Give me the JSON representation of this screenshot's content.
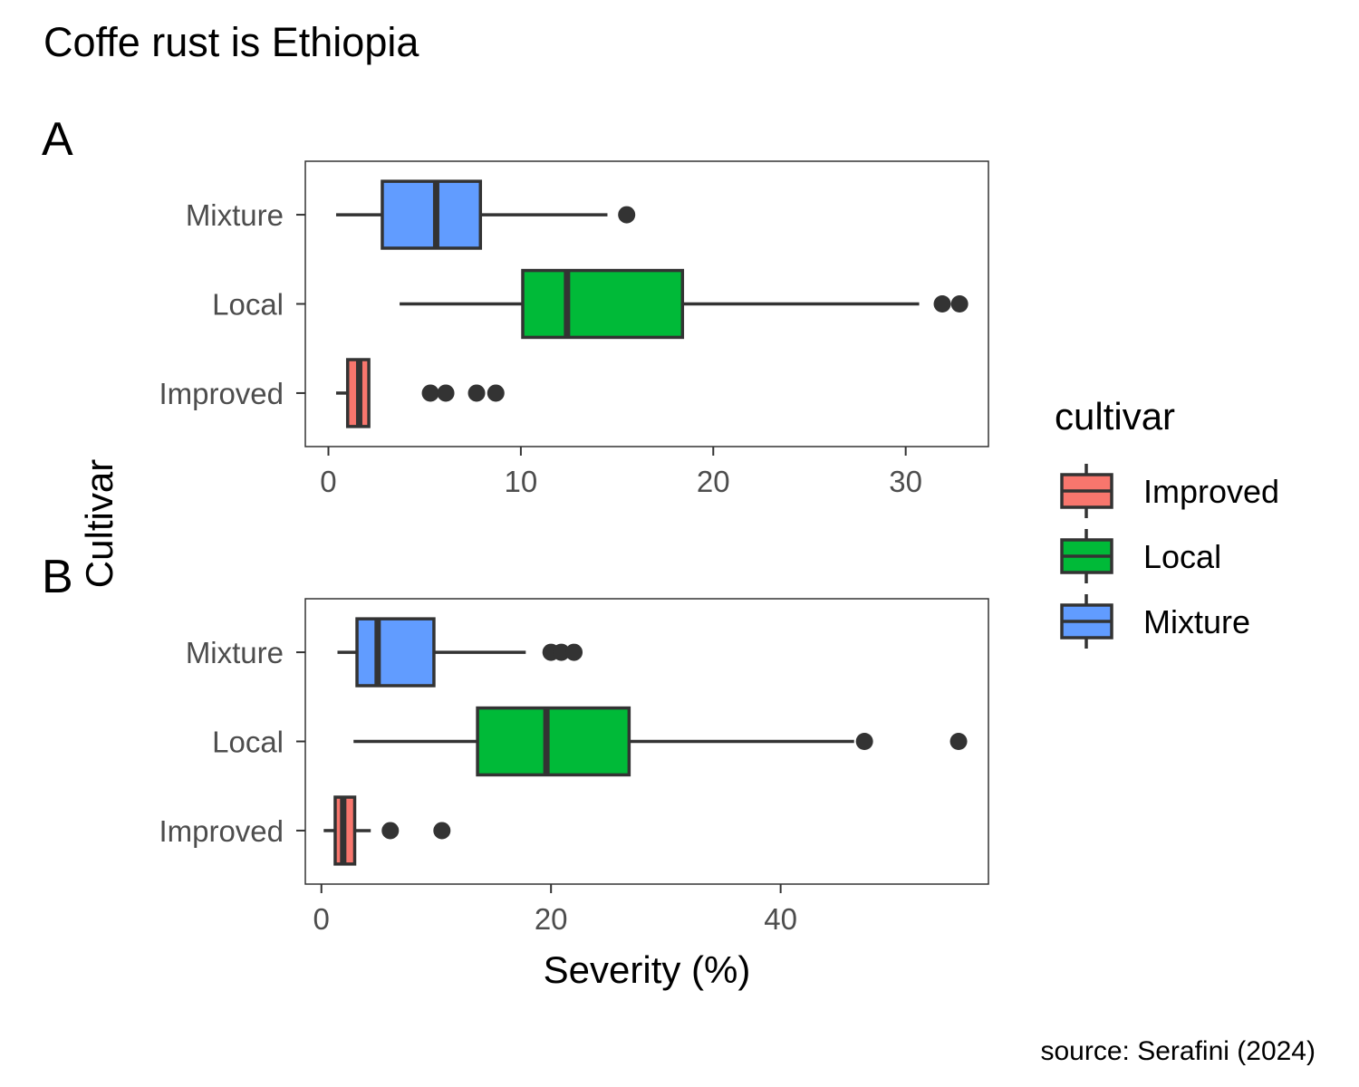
{
  "title": "Coffe rust is Ethiopia",
  "caption": "source: Serafini (2024)",
  "y_axis_title": "Cultivar",
  "x_axis_title": "Severity (%)",
  "legend": {
    "title": "cultivar",
    "items": [
      {
        "label": "Improved",
        "color": "#F8766D"
      },
      {
        "label": "Local",
        "color": "#00BA38"
      },
      {
        "label": "Mixture",
        "color": "#619CFF"
      }
    ]
  },
  "chart_data": [
    {
      "type": "boxplot",
      "panel": "A",
      "orientation": "horizontal",
      "xlim": [
        -1.2,
        34.3
      ],
      "x_ticks": [
        0,
        10,
        20,
        30
      ],
      "x_tick_labels": [
        "0",
        "10",
        "20",
        "30"
      ],
      "categories": [
        "Improved",
        "Local",
        "Mixture"
      ],
      "boxes": [
        {
          "category": "Improved",
          "color": "#F8766D",
          "whisker_low": 0.4,
          "q1": 1.0,
          "median": 1.6,
          "q3": 2.1,
          "whisker_high": 2.1,
          "outliers": [
            5.3,
            6.1,
            7.7,
            8.7
          ]
        },
        {
          "category": "Local",
          "color": "#00BA38",
          "whisker_low": 3.7,
          "q1": 10.1,
          "median": 12.4,
          "q3": 18.4,
          "whisker_high": 30.7,
          "outliers": [
            31.9,
            32.8
          ]
        },
        {
          "category": "Mixture",
          "color": "#619CFF",
          "whisker_low": 0.4,
          "q1": 2.8,
          "median": 5.6,
          "q3": 7.9,
          "whisker_high": 14.5,
          "outliers": [
            15.5
          ]
        }
      ]
    },
    {
      "type": "boxplot",
      "panel": "B",
      "orientation": "horizontal",
      "xlim": [
        -1.4,
        58.1
      ],
      "x_ticks": [
        0,
        20,
        40
      ],
      "x_tick_labels": [
        "0",
        "20",
        "40"
      ],
      "categories": [
        "Improved",
        "Local",
        "Mixture"
      ],
      "boxes": [
        {
          "category": "Improved",
          "color": "#F8766D",
          "whisker_low": 0.2,
          "q1": 1.2,
          "median": 1.9,
          "q3": 2.9,
          "whisker_high": 4.3,
          "outliers": [
            6.0,
            10.5
          ]
        },
        {
          "category": "Local",
          "color": "#00BA38",
          "whisker_low": 2.8,
          "q1": 13.6,
          "median": 19.6,
          "q3": 26.8,
          "whisker_high": 46.4,
          "outliers": [
            47.3,
            55.5
          ]
        },
        {
          "category": "Mixture",
          "color": "#619CFF",
          "whisker_low": 1.4,
          "q1": 3.1,
          "median": 4.9,
          "q3": 9.8,
          "whisker_high": 17.8,
          "outliers": [
            20.0,
            20.9,
            22.0
          ]
        }
      ]
    }
  ]
}
